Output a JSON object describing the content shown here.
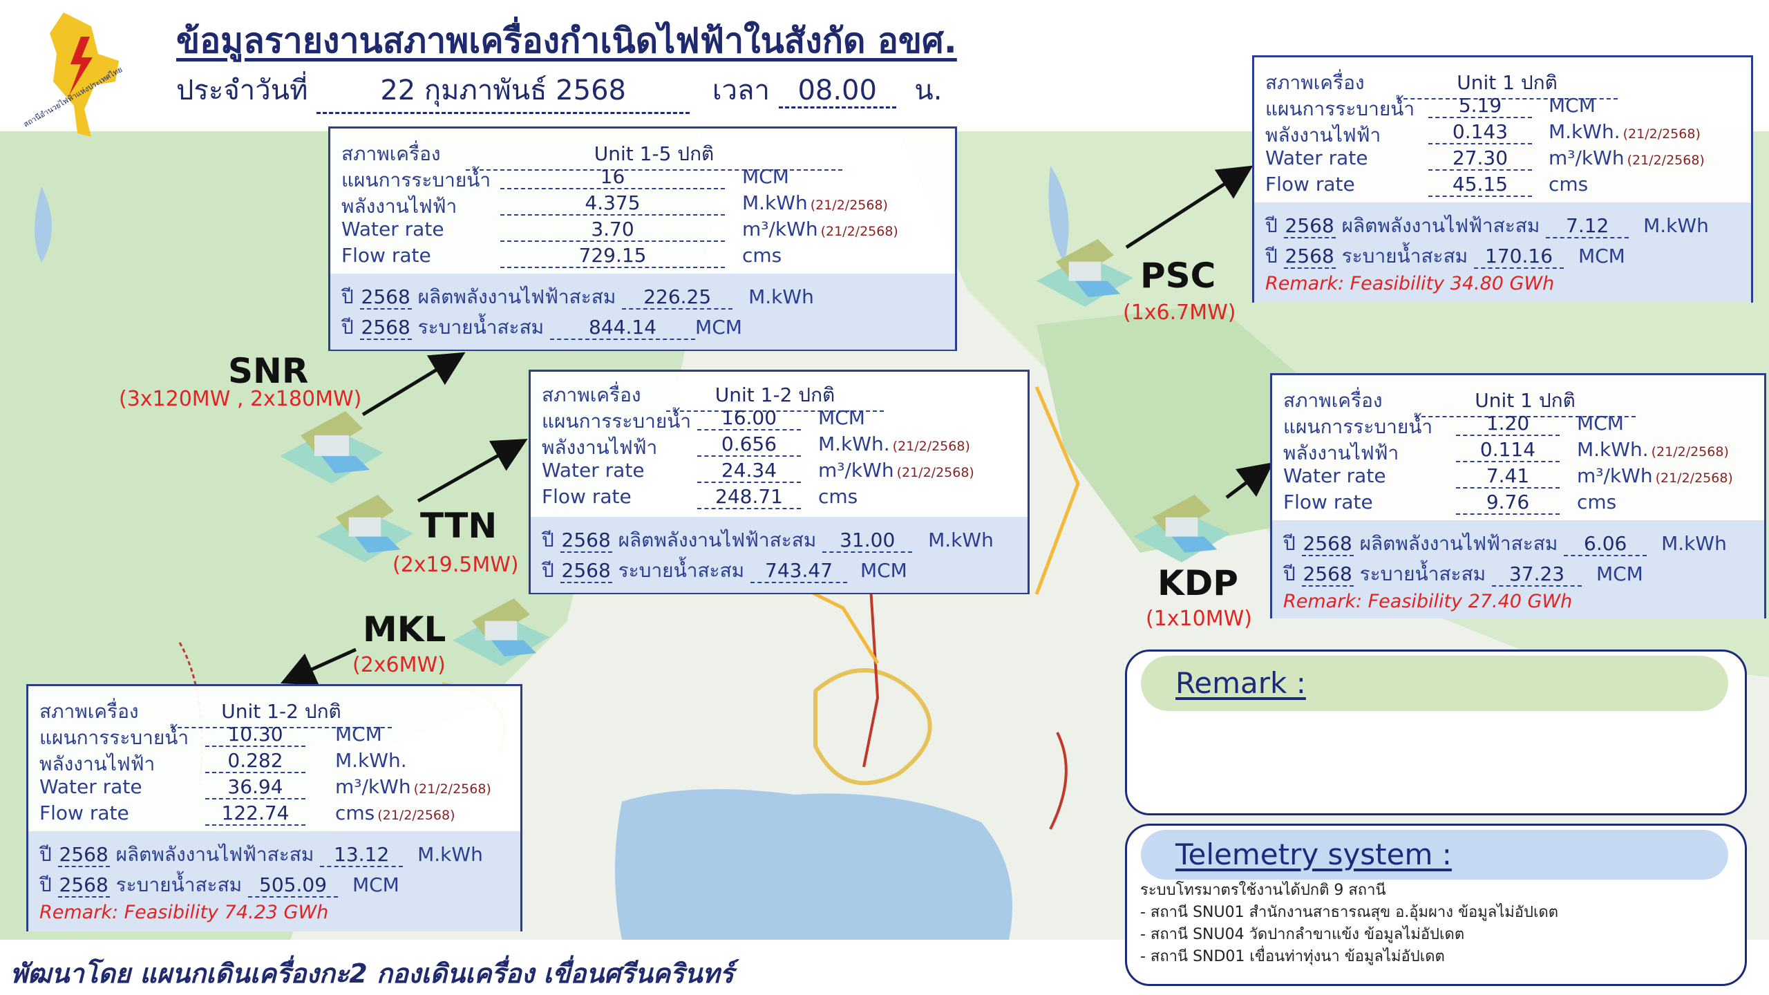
{
  "header": {
    "title": "ข้อมูลรายงานสภาพเครื่องกำเนิดไฟฟ้าในสังกัด อขศ.",
    "date_label": "ประจำวันที่",
    "date_value": "22 กุมภาพันธ์ 2568",
    "time_label": "เวลา",
    "time_value": "08.00",
    "time_unit": "น."
  },
  "logo": {
    "text": "สถานีอำนวยไฟฟ้าแห่งประเทศไทย",
    "icon": "egat-logo-icon"
  },
  "labels": {
    "status": "สภาพเครื่อง",
    "plan": "แผนการระบายน้ำ",
    "energy": "พลังงานไฟฟ้า",
    "water_rate": "Water rate",
    "flow_rate": "Flow rate",
    "year": "ปี",
    "acc_energy": "ผลิตพลังงานไฟฟ้าสะสม",
    "acc_release": "ระบายน้ำสะสม",
    "unit_mcm": "MCM",
    "unit_mkwh": "M.kWh",
    "unit_mkwh_dot": "M.kWh.",
    "unit_water": "m³/kWh",
    "unit_cms": "cms",
    "note_date": "(21/2/2568)"
  },
  "stations": {
    "snr": {
      "name": "SNR",
      "capacity": "(3x120MW , 2x180MW)",
      "status": "Unit 1-5 ปกติ",
      "plan": "16",
      "energy": "4.375",
      "water_rate": "3.70",
      "flow_rate": "729.15",
      "year": "2568",
      "acc_energy": "226.25",
      "acc_release": "844.14"
    },
    "ttn": {
      "name": "TTN",
      "capacity": "(2x19.5MW)",
      "status": "Unit 1-2 ปกติ",
      "plan": "16.00",
      "energy": "0.656",
      "water_rate": "24.34",
      "flow_rate": "248.71",
      "year": "2568",
      "acc_energy": "31.00",
      "acc_release": "743.47"
    },
    "psc": {
      "name": "PSC",
      "capacity": "(1x6.7MW)",
      "status": "Unit 1 ปกติ",
      "plan": "5.19",
      "energy": "0.143",
      "water_rate": "27.30",
      "flow_rate": "45.15",
      "year": "2568",
      "acc_energy": "7.12",
      "acc_release": "170.16",
      "remark": "Remark: Feasibility 34.80 GWh"
    },
    "kdp": {
      "name": "KDP",
      "capacity": "(1x10MW)",
      "status": "Unit 1 ปกติ",
      "plan": "1.20",
      "energy": "0.114",
      "water_rate": "7.41",
      "flow_rate": "9.76",
      "year": "2568",
      "acc_energy": "6.06",
      "acc_release": "37.23",
      "remark": "Remark: Feasibility 27.40 GWh"
    },
    "mkl": {
      "name": "MKL",
      "capacity": "(2x6MW)",
      "status": "Unit 1-2 ปกติ",
      "plan": "10.30",
      "energy": "0.282",
      "water_rate": "36.94",
      "flow_rate": "122.74",
      "year": "2568",
      "acc_energy": "13.12",
      "acc_release": "505.09",
      "remark": "Remark: Feasibility 74.23 GWh"
    }
  },
  "remark_box": {
    "title": "Remark :"
  },
  "telemetry": {
    "title": "Telemetry system :",
    "lines": [
      "ระบบโทรมาตรใช้งานได้ปกติ 9 สถานี",
      "- สถานี SNU01 สำนักงานสาธารณสุข อ.อุ้มผาง ข้อมูลไม่อัปเดต",
      "- สถานี SNU04 วัดปากลำขาแข้ง ข้อมูลไม่อัปเดต",
      "- สถานี SND01 เขื่อนท่าทุ่งนา ข้อมูลไม่อัปเดต"
    ]
  },
  "footer": "พัฒนาโดย แผนกเดินเครื่องกะ2 กองเดินเครื่อง เขื่อนศรีนครินทร์",
  "colors": {
    "navy": "#1f2a6e",
    "panel_border": "#2a3d8f",
    "summary_bg": "#d8e3f3",
    "red": "#e02424",
    "map_green": "#cfe6c4",
    "sea": "#a9cbe8",
    "remark_pill": "#d4e6bf",
    "tele_pill": "#c6d9f2"
  }
}
